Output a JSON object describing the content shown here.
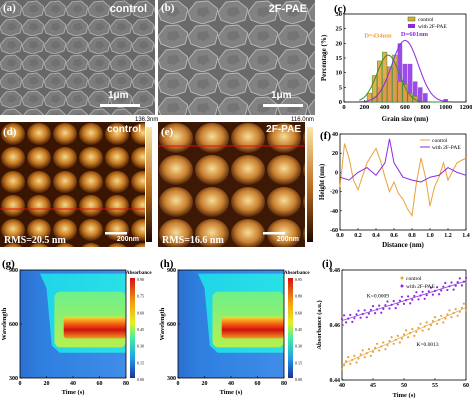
{
  "labels": {
    "a": "(a)",
    "b": "(b)",
    "c": "(c)",
    "d": "(d)",
    "e": "(e)",
    "f": "(f)",
    "g": "(g)",
    "h": "(h)",
    "i": "(i)"
  },
  "sem_a": {
    "title": "control",
    "scale": "1μm"
  },
  "sem_b": {
    "title": "2F-PAE",
    "scale": "1μm"
  },
  "afm_d": {
    "title": "control",
    "rms": "RMS=20.5 nm",
    "scale": "200nm",
    "max": "136.3nm"
  },
  "afm_e": {
    "title": "2F-PAE",
    "rms": "RMS=16.6 nm",
    "scale": "200nm",
    "max": "116.0nm"
  },
  "colors": {
    "control": "#e8a23c",
    "with": "#8a2be2",
    "green": "#3a8f2a",
    "red": "#d21e1e"
  },
  "chart_data": [
    {
      "panel": "c",
      "type": "bar",
      "xlabel": "Grain size (nm)",
      "ylabel": "Percentage (%)",
      "xlim": [
        0,
        1200
      ],
      "ylim": [
        0,
        30
      ],
      "xticks": [
        "0",
        "200",
        "400",
        "600",
        "800",
        "1000",
        "1200"
      ],
      "yticks": [
        "0",
        "5",
        "10",
        "15",
        "20",
        "25",
        "30"
      ],
      "series": [
        {
          "name": "control",
          "x": [
            250,
            300,
            350,
            400,
            450,
            500,
            550,
            600,
            650,
            700
          ],
          "values": [
            3,
            9,
            14,
            17,
            12,
            16,
            7,
            6,
            3,
            2
          ]
        },
        {
          "name": "with 2F-PAE",
          "x": [
            300,
            350,
            400,
            450,
            500,
            550,
            600,
            650,
            700,
            750,
            800,
            1000
          ],
          "values": [
            2,
            5,
            8,
            12,
            14,
            20,
            13,
            13,
            7,
            5,
            3,
            1
          ]
        }
      ],
      "annotations": [
        "D=434nm",
        "D=601nm"
      ]
    },
    {
      "panel": "f",
      "type": "line",
      "xlabel": "Distance (nm)",
      "ylabel": "Height (nm)",
      "xlim": [
        0,
        1.4
      ],
      "ylim": [
        -60,
        40
      ],
      "xticks": [
        "0.0",
        "0.2",
        "0.4",
        "0.6",
        "0.8",
        "1.0",
        "1.2",
        "1.4"
      ],
      "yticks": [
        "-60",
        "-40",
        "-20",
        "0",
        "20",
        "40"
      ],
      "series": [
        {
          "name": "control",
          "x": [
            0,
            0.05,
            0.1,
            0.15,
            0.2,
            0.3,
            0.4,
            0.45,
            0.5,
            0.55,
            0.6,
            0.65,
            0.7,
            0.75,
            0.8,
            0.85,
            0.9,
            0.95,
            1.0,
            1.05,
            1.1,
            1.15,
            1.2,
            1.3,
            1.4
          ],
          "values": [
            -15,
            30,
            15,
            -8,
            -18,
            10,
            25,
            12,
            -5,
            -20,
            -10,
            -22,
            -28,
            -38,
            -45,
            -10,
            15,
            -5,
            -35,
            -15,
            -5,
            10,
            -8,
            10,
            15
          ]
        },
        {
          "name": "with 2F-PAE",
          "x": [
            0,
            0.1,
            0.2,
            0.3,
            0.4,
            0.5,
            0.55,
            0.6,
            0.7,
            0.8,
            0.9,
            1.0,
            1.1,
            1.2,
            1.3,
            1.4
          ],
          "values": [
            -5,
            -8,
            0,
            5,
            -3,
            10,
            35,
            10,
            -5,
            -8,
            -10,
            -5,
            -3,
            5,
            0,
            -3
          ]
        }
      ]
    },
    {
      "panel": "g",
      "type": "heatmap",
      "xlabel": "Time (s)",
      "ylabel": "Wavelength",
      "colorbar_label": "Absorbance",
      "xlim": [
        0,
        80
      ],
      "ylim": [
        300,
        900
      ],
      "xticks": [
        "0",
        "20",
        "40",
        "60",
        "80"
      ],
      "yticks": [
        "300",
        "600",
        "900"
      ],
      "cbar_ticks": [
        "0.90",
        "0.75",
        "0.60",
        "0.45",
        "0.30",
        "0.15",
        "0.00"
      ]
    },
    {
      "panel": "h",
      "type": "heatmap",
      "xlabel": "Time (s)",
      "ylabel": "Wavelength",
      "colorbar_label": "Absorbance",
      "xlim": [
        0,
        80
      ],
      "ylim": [
        300,
        900
      ],
      "xticks": [
        "0",
        "20",
        "40",
        "60",
        "80"
      ],
      "yticks": [
        "300",
        "600",
        "900"
      ],
      "cbar_ticks": [
        "0.95",
        "0.80",
        "0.60",
        "0.45",
        "0.30",
        "0.15",
        "0.00"
      ]
    },
    {
      "panel": "i",
      "type": "scatter",
      "xlabel": "Time (s)",
      "ylabel": "Absorbance (a.u.)",
      "xlim": [
        40,
        60
      ],
      "ylim": [
        0.44,
        0.49
      ],
      "xticks": [
        "40",
        "45",
        "50",
        "55",
        "60"
      ],
      "yticks": [
        "0.44",
        "0.46",
        "0.48"
      ],
      "series": [
        {
          "name": "control",
          "slope_label": "K=0.0013",
          "start": 0.447,
          "end": 0.473
        },
        {
          "name": "with 2F-PAE",
          "slope_label": "K=0.0009",
          "start": 0.467,
          "end": 0.485
        }
      ]
    }
  ]
}
